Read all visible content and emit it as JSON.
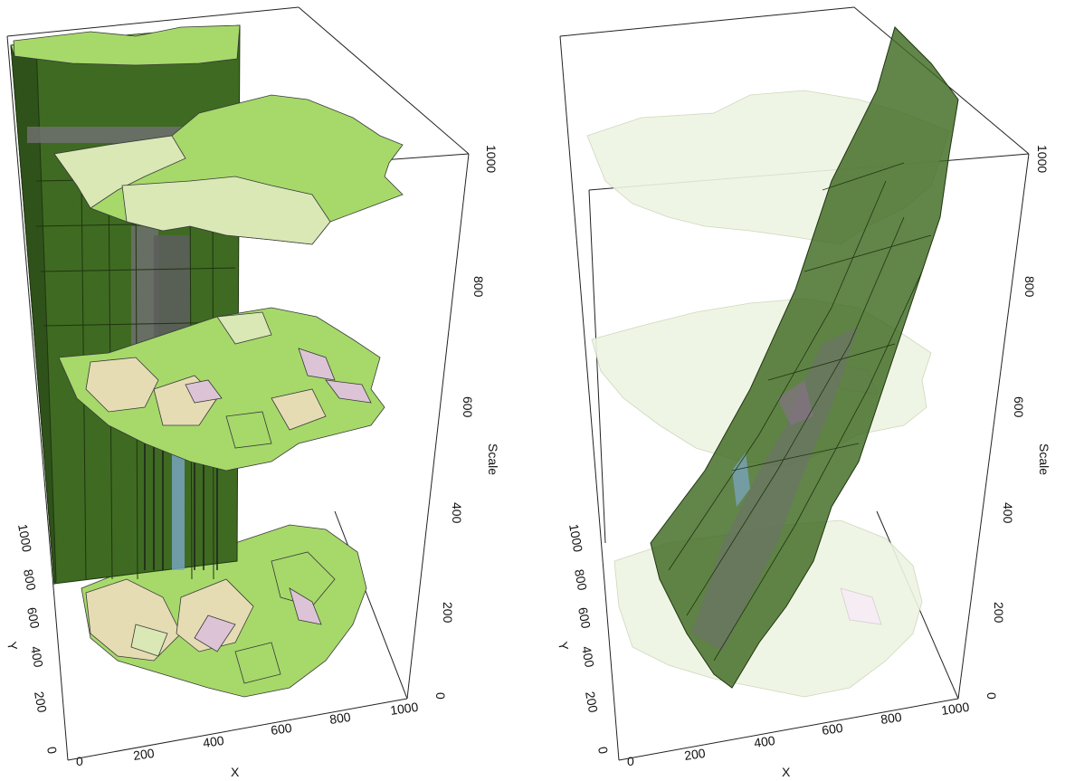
{
  "figure": {
    "panels": [
      {
        "id": "left",
        "description": "stacked map layers with vertical prism columns",
        "x_axis": {
          "title": "X",
          "ticks": [
            "0",
            "200",
            "400",
            "600",
            "800",
            "1000"
          ]
        },
        "y_axis": {
          "title": "Y",
          "ticks": [
            "200",
            "400",
            "600",
            "800",
            "1000"
          ],
          "extra_tick": "0"
        },
        "z_axis": {
          "title": "Scale",
          "ticks": [
            "0",
            "200",
            "400",
            "600",
            "800",
            "1000"
          ]
        }
      },
      {
        "id": "right",
        "description": "faded map layers with slanted surface",
        "x_axis": {
          "title": "X",
          "ticks": [
            "0",
            "200",
            "400",
            "600",
            "800",
            "1000"
          ]
        },
        "y_axis": {
          "title": "Y",
          "ticks": [
            "200",
            "400",
            "600",
            "800",
            "1000"
          ],
          "extra_tick": "0"
        },
        "z_axis": {
          "title": "Scale",
          "ticks": [
            "0",
            "200",
            "400",
            "600",
            "800",
            "1000"
          ]
        }
      }
    ],
    "colors": {
      "bright_green": "#a6d96a",
      "pale_green": "#d9e8b5",
      "tan": "#e6dcb4",
      "pink": "#dcc4d6",
      "dark_green": "#3f6a22",
      "gray_column": "#6f6f6f",
      "blue_column": "#7aa7c7",
      "faded_green": "#eef5e2",
      "faded_pink": "#f5ecf2"
    }
  }
}
